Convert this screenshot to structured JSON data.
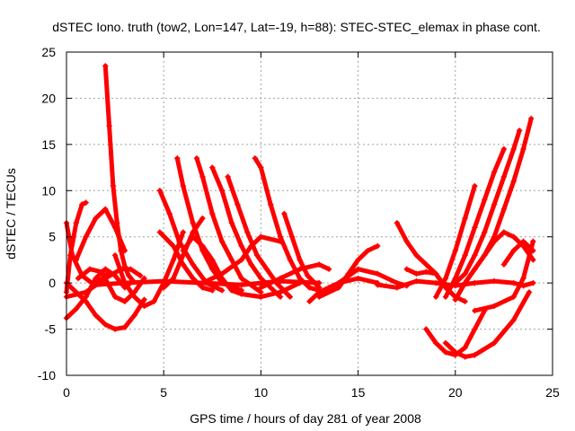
{
  "chart_data": {
    "type": "line",
    "title": "dSTEC Iono. truth (tow2, Lon=147, Lat=-19, h=88): STEC-STEC_elemax in phase cont.",
    "xlabel": "GPS time / hours of day 281 of year 2008",
    "ylabel": "dSTEC  / TECUs",
    "xlim": [
      0,
      25
    ],
    "ylim": [
      -10,
      25
    ],
    "xticks": [
      "0",
      "5",
      "10",
      "15",
      "20",
      "25"
    ],
    "yticks": [
      "-10",
      "-5",
      "0",
      "5",
      "10",
      "15",
      "20",
      "25"
    ],
    "grid": true,
    "legend": "none",
    "color": "#ff0000",
    "marker": "plus",
    "series": [
      {
        "x": [
          2.0,
          2.2,
          2.4,
          2.6,
          2.8,
          3.0,
          3.2,
          3.4
        ],
        "y": [
          23.5,
          17.0,
          10.5,
          6.5,
          3.5,
          1.8,
          0.8,
          0.3
        ]
      },
      {
        "x": [
          0.0,
          0.3,
          0.8,
          1.3,
          1.8,
          2.2
        ],
        "y": [
          6.5,
          3.0,
          0.8,
          0.0,
          0.4,
          1.2
        ]
      },
      {
        "x": [
          0.0,
          0.2,
          0.5,
          0.8,
          1.0
        ],
        "y": [
          -1.0,
          3.0,
          6.5,
          8.5,
          8.7
        ]
      },
      {
        "x": [
          0.0,
          0.5,
          1.0,
          1.5,
          2.0,
          2.5,
          3.0,
          3.4
        ],
        "y": [
          -3.8,
          -2.8,
          -1.5,
          0.5,
          1.5,
          0.8,
          -0.5,
          0.2
        ]
      },
      {
        "x": [
          0.0,
          1.0,
          2.0,
          2.8,
          3.3,
          3.8
        ],
        "y": [
          -1.5,
          -1.0,
          0.5,
          1.5,
          1.5,
          0.8
        ]
      },
      {
        "x": [
          0.6,
          1.2,
          1.8,
          2.5,
          3.0,
          3.5,
          4.0
        ],
        "y": [
          0.5,
          1.5,
          1.2,
          -1.5,
          -2.0,
          -1.0,
          0.5
        ]
      },
      {
        "x": [
          0.5,
          1.0,
          1.5,
          2.0,
          2.5,
          3.0
        ],
        "y": [
          2.5,
          5.0,
          7.0,
          8.0,
          6.0,
          3.5
        ]
      },
      {
        "x": [
          0.0,
          0.5,
          1.0,
          1.5,
          2.0,
          2.5,
          3.0,
          3.5,
          4.0
        ],
        "y": [
          0.0,
          -1.0,
          -2.0,
          -3.5,
          -4.5,
          -5.0,
          -4.8,
          -3.5,
          -1.8
        ]
      },
      {
        "x": [
          2.5,
          3.0,
          3.5,
          4.0,
          4.5,
          5.0,
          5.5,
          6.0
        ],
        "y": [
          3.0,
          0.0,
          -1.5,
          -2.5,
          -2.0,
          0.0,
          2.5,
          5.5
        ]
      },
      {
        "x": [
          4.8,
          5.3,
          5.8,
          6.5,
          7.2,
          8.0
        ],
        "y": [
          10.0,
          7.5,
          4.5,
          2.0,
          0.0,
          -0.8
        ]
      },
      {
        "x": [
          4.8,
          5.5,
          6.0,
          6.5,
          7.0,
          7.5
        ],
        "y": [
          5.5,
          4.0,
          2.0,
          0.5,
          -0.5,
          -0.8
        ]
      },
      {
        "x": [
          5.7,
          6.0,
          6.5,
          7.0,
          7.5,
          8.0,
          9.0
        ],
        "y": [
          13.5,
          10.5,
          6.5,
          3.5,
          1.5,
          0.0,
          -0.8
        ]
      },
      {
        "x": [
          6.7,
          7.0,
          7.5,
          8.0,
          8.5,
          9.0,
          10.0
        ],
        "y": [
          13.5,
          11.5,
          7.5,
          4.5,
          2.5,
          0.5,
          -1.0
        ]
      },
      {
        "x": [
          7.5,
          8.0,
          8.5,
          9.0,
          9.5,
          10.0,
          11.0
        ],
        "y": [
          12.5,
          10.0,
          6.5,
          4.0,
          2.0,
          0.5,
          -1.5
        ]
      },
      {
        "x": [
          8.3,
          8.8,
          9.3,
          9.8,
          10.3,
          10.8,
          11.5
        ],
        "y": [
          11.5,
          8.5,
          5.5,
          3.0,
          1.5,
          0.0,
          -1.5
        ]
      },
      {
        "x": [
          9.7,
          10.0,
          10.5,
          11.0,
          11.5,
          12.0,
          12.5,
          13.0
        ],
        "y": [
          13.5,
          12.5,
          8.5,
          5.0,
          2.5,
          0.5,
          -0.5,
          -0.8
        ]
      },
      {
        "x": [
          11.2,
          11.6,
          12.0,
          12.4,
          13.0
        ],
        "y": [
          7.5,
          5.0,
          2.5,
          0.8,
          -0.5
        ]
      },
      {
        "x": [
          6.0,
          6.5,
          7.0,
          7.5,
          8.0,
          8.5,
          9.0,
          10.0,
          11.0,
          12.0
        ],
        "y": [
          3.5,
          5.0,
          4.0,
          2.5,
          0.5,
          -0.8,
          -1.2,
          -1.5,
          -1.0,
          0.0
        ]
      },
      {
        "x": [
          1.5,
          3.0,
          5.0,
          7.0,
          9.0,
          11.0,
          13.0
        ],
        "y": [
          -0.2,
          0.0,
          0.2,
          0.0,
          -0.2,
          0.2,
          0.0
        ]
      },
      {
        "x": [
          5.0,
          5.5,
          6.0,
          6.5,
          7.0
        ],
        "y": [
          -0.5,
          0.5,
          3.0,
          5.5,
          7.0
        ]
      },
      {
        "x": [
          7.0,
          8.0,
          9.0,
          9.5,
          10.0,
          11.0
        ],
        "y": [
          0.0,
          1.0,
          2.5,
          4.0,
          5.0,
          4.5
        ]
      },
      {
        "x": [
          10.0,
          11.0,
          12.0,
          13.0,
          13.5
        ],
        "y": [
          -0.5,
          0.5,
          1.5,
          2.0,
          1.5
        ]
      },
      {
        "x": [
          12.5,
          13.0,
          13.5,
          14.0,
          15.0,
          16.0
        ],
        "y": [
          -2.0,
          -1.0,
          -0.5,
          0.0,
          0.5,
          0.0
        ]
      },
      {
        "x": [
          13.0,
          14.0,
          14.5,
          15.0,
          15.5,
          16.0
        ],
        "y": [
          -1.5,
          -0.5,
          1.0,
          2.5,
          3.5,
          4.0
        ]
      },
      {
        "x": [
          14.0,
          15.0,
          16.0,
          17.0,
          17.5
        ],
        "y": [
          0.0,
          1.5,
          1.0,
          0.0,
          -0.3
        ]
      },
      {
        "x": [
          16.0,
          17.0,
          18.0,
          19.0,
          20.0,
          21.0
        ],
        "y": [
          -0.2,
          -0.5,
          0.2,
          0.0,
          -0.3,
          0.0
        ]
      },
      {
        "x": [
          17.0,
          17.5,
          18.0,
          18.5,
          19.0,
          19.5,
          20.0
        ],
        "y": [
          6.5,
          4.5,
          3.0,
          2.0,
          1.0,
          -0.5,
          -1.5
        ]
      },
      {
        "x": [
          17.5,
          18.0,
          18.5,
          19.0,
          19.5,
          20.0,
          20.5
        ],
        "y": [
          1.5,
          1.0,
          1.2,
          1.0,
          -0.5,
          -1.5,
          -2.0
        ]
      },
      {
        "x": [
          18.5,
          19.0,
          19.5,
          20.0,
          20.5,
          21.0,
          21.5
        ],
        "y": [
          -5.0,
          -6.5,
          -7.5,
          -7.8,
          -7.0,
          -5.0,
          -3.0
        ]
      },
      {
        "x": [
          19.5,
          20.0,
          20.5,
          21.0,
          22.0,
          23.0,
          23.8
        ],
        "y": [
          -6.5,
          -7.5,
          -8.0,
          -7.8,
          -6.5,
          -4.0,
          -1.0
        ]
      },
      {
        "x": [
          19.0,
          19.5,
          20.0,
          20.5,
          21.0
        ],
        "y": [
          -1.5,
          0.5,
          3.5,
          7.0,
          10.5
        ]
      },
      {
        "x": [
          19.5,
          20.0,
          20.5,
          21.0,
          21.5,
          22.0,
          22.5
        ],
        "y": [
          -1.5,
          0.5,
          3.0,
          6.0,
          9.0,
          12.0,
          14.5
        ]
      },
      {
        "x": [
          20.0,
          20.5,
          21.0,
          21.5,
          22.0,
          22.5,
          23.0,
          23.3
        ],
        "y": [
          0.0,
          1.0,
          3.0,
          5.5,
          8.5,
          11.5,
          14.5,
          16.5
        ]
      },
      {
        "x": [
          20.5,
          21.0,
          21.5,
          22.0,
          22.5,
          23.0,
          23.5,
          23.9
        ],
        "y": [
          0.0,
          1.5,
          3.0,
          5.0,
          8.0,
          11.0,
          14.5,
          17.8
        ]
      },
      {
        "x": [
          20.0,
          20.5,
          21.0,
          21.5,
          22.0,
          22.5,
          23.0,
          23.5,
          24.0
        ],
        "y": [
          -1.8,
          0.0,
          1.5,
          3.0,
          4.5,
          5.5,
          5.0,
          4.0,
          2.5
        ]
      },
      {
        "x": [
          21.0,
          22.0,
          23.0,
          23.5,
          24.0
        ],
        "y": [
          -3.0,
          -2.5,
          -1.5,
          0.5,
          4.5
        ]
      },
      {
        "x": [
          21.0,
          22.0,
          23.0,
          23.5,
          24.0
        ],
        "y": [
          0.0,
          0.2,
          0.0,
          -0.3,
          0.0
        ]
      },
      {
        "x": [
          22.5,
          23.0,
          23.5,
          24.0
        ],
        "y": [
          2.0,
          3.5,
          4.5,
          3.5
        ]
      }
    ]
  }
}
